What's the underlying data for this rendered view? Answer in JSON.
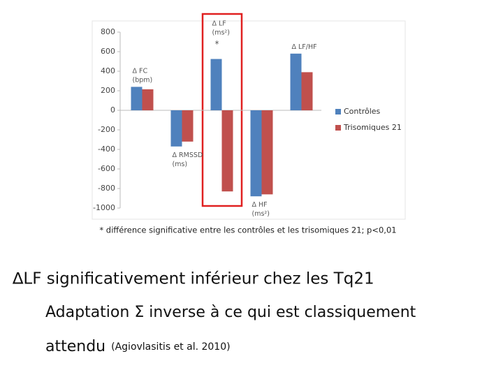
{
  "chart_data": {
    "type": "bar",
    "categories": [
      "Δ FC\n(bpm)",
      "Δ RMSSD\n(ms)",
      "Δ LF\n(ms²)",
      "Δ HF\n(ms²)",
      "Δ LF/HF"
    ],
    "series": [
      {
        "name": "Contrôles",
        "color": "#4f81bd",
        "values": [
          240,
          -370,
          525,
          -880,
          580
        ]
      },
      {
        "name": "Trisomiques 21",
        "color": "#c0504d",
        "values": [
          215,
          -320,
          -830,
          -860,
          390
        ]
      }
    ],
    "ylim": [
      -1000,
      800
    ],
    "yticks": [
      -1000,
      -800,
      -600,
      -400,
      -200,
      0,
      200,
      400,
      600,
      800
    ],
    "annotation": "*",
    "footnote": "* différence significative entre les contrôles et les trisomiques 21; p<0,01"
  },
  "slide": {
    "heading": "∆LF significativement inférieur chez les Tq21",
    "line1": "Adaptation Σ inverse à ce qui est classiquement",
    "line2": "attendu",
    "citation": "(Agiovlasitis et al. 2010)"
  }
}
